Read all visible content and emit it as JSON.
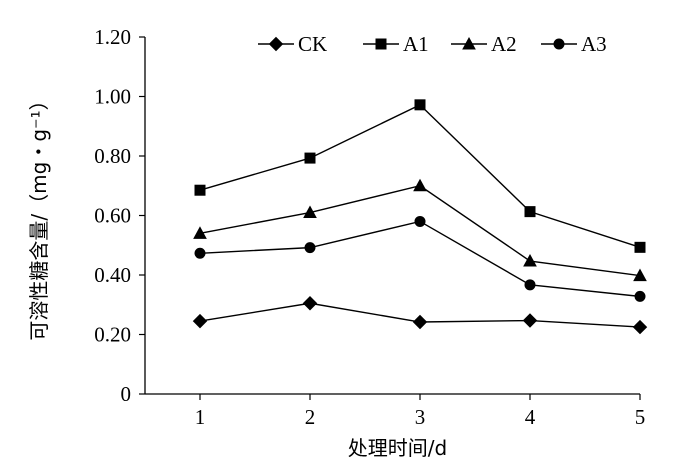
{
  "chart_data": {
    "type": "line",
    "xlabel": "处理时间/d",
    "ylabel": "可溶性糖含量/（mg・g⁻¹）",
    "x": [
      1,
      2,
      3,
      4,
      5
    ],
    "x_tick_labels": [
      "1",
      "2",
      "3",
      "4",
      "5"
    ],
    "ylim": [
      0,
      1.2
    ],
    "y_ticks": [
      0,
      0.2,
      0.4,
      0.6,
      0.8,
      1.0,
      1.2
    ],
    "y_tick_labels": [
      "0",
      "0.20",
      "0.40",
      "0.60",
      "0.80",
      "1.00",
      "1.20"
    ],
    "grid": false,
    "legend_position": "top",
    "series": [
      {
        "name": "CK",
        "marker": "diamond",
        "values": [
          0.245,
          0.305,
          0.242,
          0.247,
          0.225
        ]
      },
      {
        "name": "A1",
        "marker": "square",
        "values": [
          0.685,
          0.793,
          0.972,
          0.613,
          0.493
        ]
      },
      {
        "name": "A2",
        "marker": "triangle",
        "values": [
          0.54,
          0.61,
          0.7,
          0.447,
          0.398
        ]
      },
      {
        "name": "A3",
        "marker": "circle",
        "values": [
          0.473,
          0.492,
          0.58,
          0.367,
          0.328
        ]
      }
    ]
  }
}
